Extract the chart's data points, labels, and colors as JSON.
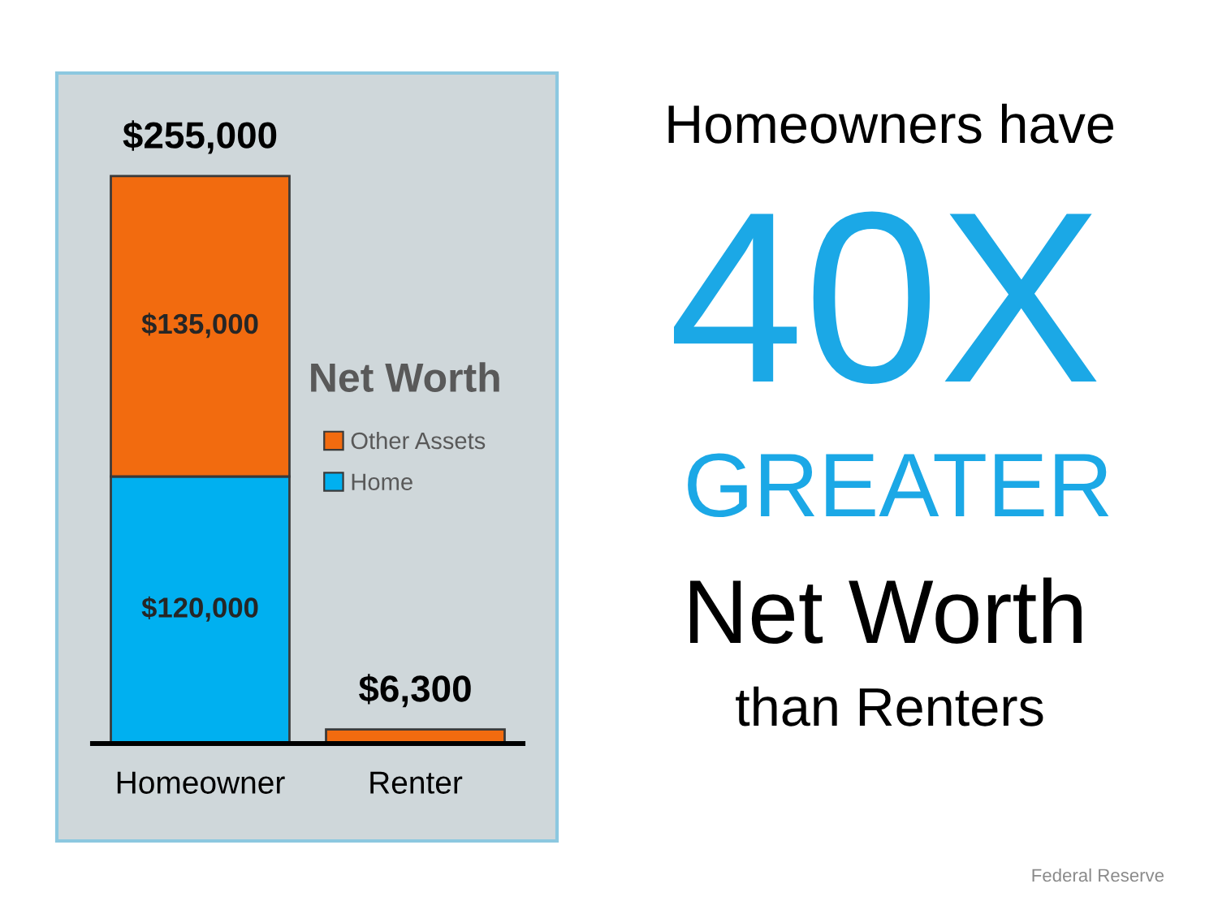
{
  "chart_data": {
    "type": "bar",
    "stacked": true,
    "categories": [
      "Homeowner",
      "Renter"
    ],
    "series": [
      {
        "name": "Home",
        "color": "#00b0f0",
        "values": [
          120000,
          null
        ],
        "value_labels": [
          "$120,000",
          null
        ]
      },
      {
        "name": "Other Assets",
        "color": "#f26b0f",
        "values": [
          135000,
          6300
        ],
        "value_labels": [
          "$135,000",
          null
        ]
      }
    ],
    "totals": [
      "$255,000",
      "$6,300"
    ],
    "legend_title": "Net Worth",
    "legend": "right",
    "annotations": [
      "Homeowners have",
      "40X",
      "GREATER",
      "Net Worth",
      "than Renters",
      "Federal Reserve"
    ]
  }
}
